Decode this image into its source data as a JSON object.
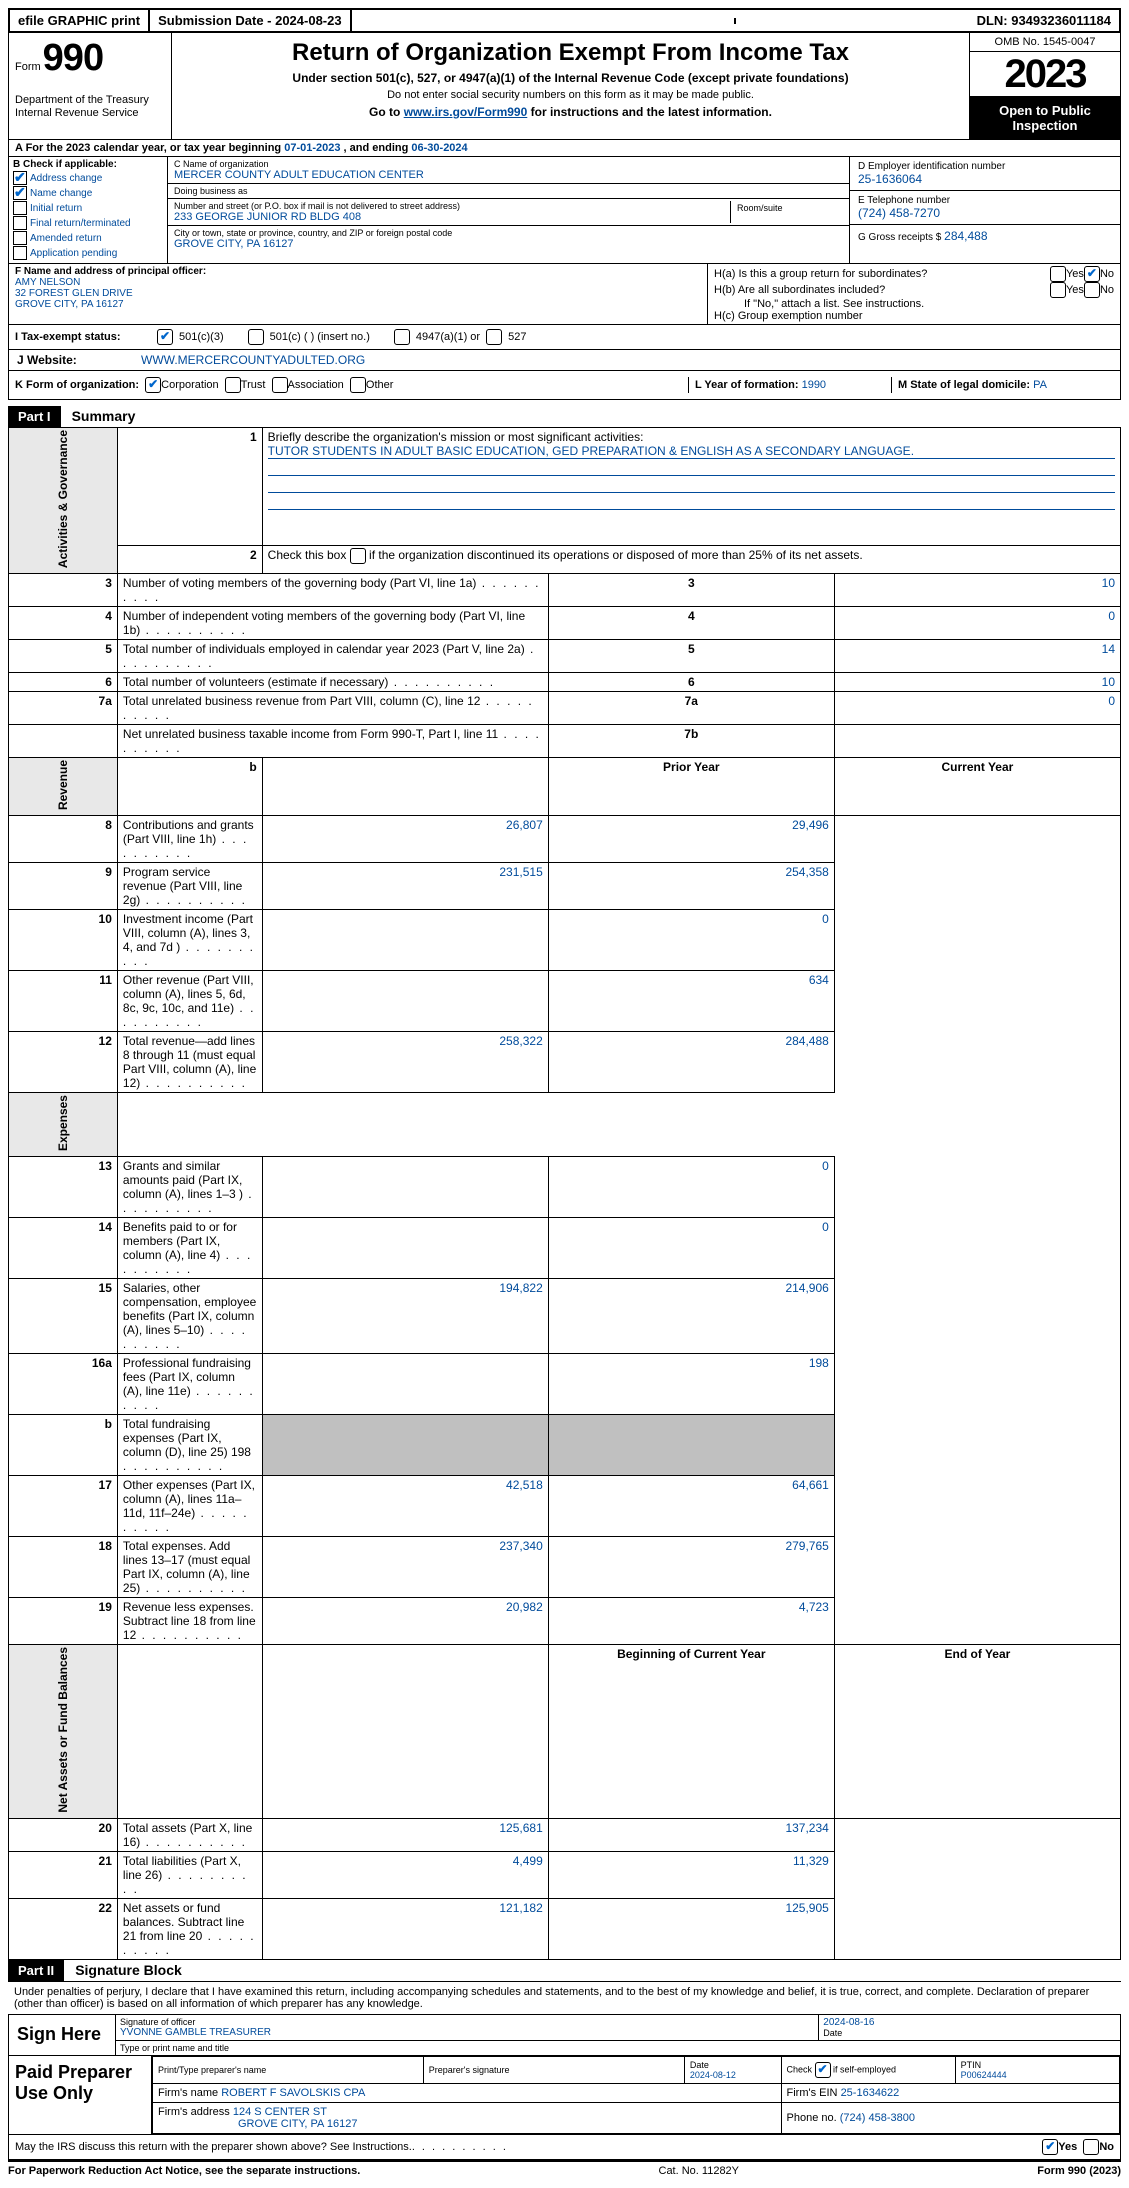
{
  "colors": {
    "link": "#004b9b",
    "black": "#000000",
    "shade": "#c0c0c0"
  },
  "topbar": {
    "efile": "efile GRAPHIC print",
    "submission": "Submission Date - 2024-08-23",
    "dln": "DLN: 93493236011184"
  },
  "header": {
    "form_label": "Form",
    "form_number": "990",
    "dept": "Department of the Treasury\nInternal Revenue Service",
    "title": "Return of Organization Exempt From Income Tax",
    "sub1": "Under section 501(c), 527, or 4947(a)(1) of the Internal Revenue Code (except private foundations)",
    "sub2": "Do not enter social security numbers on this form as it may be made public.",
    "sub3_pre": "Go to ",
    "sub3_link": "www.irs.gov/Form990",
    "sub3_post": " for instructions and the latest information.",
    "omb": "OMB No. 1545-0047",
    "year": "2023",
    "open": "Open to Public Inspection"
  },
  "row_a": {
    "text_pre": "A For the 2023 calendar year, or tax year beginning ",
    "begin": "07-01-2023",
    "mid": " , and ending ",
    "end": "06-30-2024"
  },
  "box_b": {
    "label": "B Check if applicable:",
    "items": [
      {
        "label": "Address change",
        "checked": true
      },
      {
        "label": "Name change",
        "checked": true
      },
      {
        "label": "Initial return",
        "checked": false
      },
      {
        "label": "Final return/terminated",
        "checked": false
      },
      {
        "label": "Amended return",
        "checked": false
      },
      {
        "label": "Application pending",
        "checked": false
      }
    ]
  },
  "box_c": {
    "name_label": "C Name of organization",
    "name": "MERCER COUNTY ADULT EDUCATION CENTER",
    "dba_label": "Doing business as",
    "dba": "",
    "addr_label": "Number and street (or P.O. box if mail is not delivered to street address)",
    "addr": "233 GEORGE JUNIOR RD BLDG 408",
    "room_label": "Room/suite",
    "city_label": "City or town, state or province, country, and ZIP or foreign postal code",
    "city": "GROVE CITY, PA  16127"
  },
  "box_d": {
    "label": "D Employer identification number",
    "val": "25-1636064"
  },
  "box_e": {
    "label": "E Telephone number",
    "val": "(724) 458-7270"
  },
  "box_g": {
    "label": "G Gross receipts $",
    "val": "284,488"
  },
  "box_f": {
    "label": "F  Name and address of principal officer:",
    "name": "AMY NELSON",
    "addr1": "32 FOREST GLEN DRIVE",
    "addr2": "GROVE CITY, PA  16127"
  },
  "box_h": {
    "ha_label": "H(a)  Is this a group return for subordinates?",
    "ha_yes": false,
    "ha_no": true,
    "hb_label": "H(b)  Are all subordinates included?",
    "hb_yes": false,
    "hb_no": false,
    "hb_note": "If \"No,\" attach a list. See instructions.",
    "hc_label": "H(c)  Group exemption number "
  },
  "tax_status": {
    "label_i": "I  Tax-exempt status:",
    "c501c3": true,
    "c501c": false,
    "c501c_text": "501(c) (  ) (insert no.)",
    "c4947": false,
    "c4947_text": "4947(a)(1) or",
    "c527": false,
    "c527_text": "527"
  },
  "website": {
    "label": "J  Website:",
    "val": "WWW.MERCERCOUNTYADULTED.ORG"
  },
  "box_k": {
    "label": "K Form of organization:",
    "corp": true,
    "trust": false,
    "assoc": false,
    "other": false,
    "l_label": "L Year of formation:",
    "l_val": "1990",
    "m_label": "M State of legal domicile:",
    "m_val": "PA"
  },
  "part1": {
    "tag": "Part I",
    "title": "Summary"
  },
  "summary": {
    "line1_label": "Briefly describe the organization's mission or most significant activities:",
    "line1_val": "TUTOR STUDENTS IN ADULT BASIC EDUCATION, GED PREPARATION & ENGLISH AS A SECONDARY LANGUAGE.",
    "line2_label": "Check this box      if the organization discontinued its operations or disposed of more than 25% of its net assets.",
    "gov_rows": [
      {
        "n": "3",
        "label": "Number of voting members of the governing body (Part VI, line 1a)",
        "box": "3",
        "val": "10"
      },
      {
        "n": "4",
        "label": "Number of independent voting members of the governing body (Part VI, line 1b)",
        "box": "4",
        "val": "0"
      },
      {
        "n": "5",
        "label": "Total number of individuals employed in calendar year 2023 (Part V, line 2a)",
        "box": "5",
        "val": "14"
      },
      {
        "n": "6",
        "label": "Total number of volunteers (estimate if necessary)",
        "box": "6",
        "val": "10"
      },
      {
        "n": "7a",
        "label": "Total unrelated business revenue from Part VIII, column (C), line 12",
        "box": "7a",
        "val": "0"
      },
      {
        "n": "",
        "label": "Net unrelated business taxable income from Form 990-T, Part I, line 11",
        "box": "7b",
        "val": ""
      }
    ],
    "rev_header": {
      "prior": "Prior Year",
      "current": "Current Year"
    },
    "rev_rows": [
      {
        "n": "8",
        "label": "Contributions and grants (Part VIII, line 1h)",
        "prior": "26,807",
        "current": "29,496"
      },
      {
        "n": "9",
        "label": "Program service revenue (Part VIII, line 2g)",
        "prior": "231,515",
        "current": "254,358"
      },
      {
        "n": "10",
        "label": "Investment income (Part VIII, column (A), lines 3, 4, and 7d )",
        "prior": "",
        "current": "0"
      },
      {
        "n": "11",
        "label": "Other revenue (Part VIII, column (A), lines 5, 6d, 8c, 9c, 10c, and 11e)",
        "prior": "",
        "current": "634"
      },
      {
        "n": "12",
        "label": "Total revenue—add lines 8 through 11 (must equal Part VIII, column (A), line 12)",
        "prior": "258,322",
        "current": "284,488"
      }
    ],
    "exp_rows": [
      {
        "n": "13",
        "label": "Grants and similar amounts paid (Part IX, column (A), lines 1–3 )",
        "prior": "",
        "current": "0"
      },
      {
        "n": "14",
        "label": "Benefits paid to or for members (Part IX, column (A), line 4)",
        "prior": "",
        "current": "0"
      },
      {
        "n": "15",
        "label": "Salaries, other compensation, employee benefits (Part IX, column (A), lines 5–10)",
        "prior": "194,822",
        "current": "214,906"
      },
      {
        "n": "16a",
        "label": "Professional fundraising fees (Part IX, column (A), line 11e)",
        "prior": "",
        "current": "198"
      },
      {
        "n": "b",
        "label": "Total fundraising expenses (Part IX, column (D), line 25) 198",
        "prior": "SHADE",
        "current": "SHADE"
      },
      {
        "n": "17",
        "label": "Other expenses (Part IX, column (A), lines 11a–11d, 11f–24e)",
        "prior": "42,518",
        "current": "64,661"
      },
      {
        "n": "18",
        "label": "Total expenses. Add lines 13–17 (must equal Part IX, column (A), line 25)",
        "prior": "237,340",
        "current": "279,765"
      },
      {
        "n": "19",
        "label": "Revenue less expenses. Subtract line 18 from line 12",
        "prior": "20,982",
        "current": "4,723"
      }
    ],
    "net_header": {
      "prior": "Beginning of Current Year",
      "current": "End of Year"
    },
    "net_rows": [
      {
        "n": "20",
        "label": "Total assets (Part X, line 16)",
        "prior": "125,681",
        "current": "137,234"
      },
      {
        "n": "21",
        "label": "Total liabilities (Part X, line 26)",
        "prior": "4,499",
        "current": "11,329"
      },
      {
        "n": "22",
        "label": "Net assets or fund balances. Subtract line 21 from line 20",
        "prior": "121,182",
        "current": "125,905"
      }
    ],
    "side_labels": {
      "gov": "Activities & Governance",
      "rev": "Revenue",
      "exp": "Expenses",
      "net": "Net Assets or Fund Balances"
    }
  },
  "part2": {
    "tag": "Part II",
    "title": "Signature Block"
  },
  "sig": {
    "declaration": "Under penalties of perjury, I declare that I have examined this return, including accompanying schedules and statements, and to the best of my knowledge and belief, it is true, correct, and complete. Declaration of preparer (other than officer) is based on all information of which preparer has any knowledge.",
    "sign_here": "Sign Here",
    "sig_officer_label": "Signature of officer",
    "sig_officer": "YVONNE GAMBLE  TREASURER",
    "type_label": "Type or print name and title",
    "date_label": "Date",
    "date": "2024-08-16"
  },
  "preparer": {
    "label": "Paid Preparer Use Only",
    "print_label": "Print/Type preparer's name",
    "sig_label": "Preparer's signature",
    "date_label": "Date",
    "date": "2024-08-12",
    "check_label": "Check         if self-employed",
    "check": true,
    "ptin_label": "PTIN",
    "ptin": "P00624444",
    "firm_name_label": "Firm's name   ",
    "firm_name": "ROBERT F SAVOLSKIS CPA",
    "firm_ein_label": "Firm's EIN  ",
    "firm_ein": "25-1634622",
    "firm_addr_label": "Firm's address ",
    "firm_addr1": "124 S CENTER ST",
    "firm_addr2": "GROVE CITY, PA  16127",
    "phone_label": "Phone no.",
    "phone": "(724) 458-3800"
  },
  "discuss": {
    "text": "May the IRS discuss this return with the preparer shown above? See Instructions.",
    "yes": true,
    "no": false
  },
  "footer": {
    "left": "For Paperwork Reduction Act Notice, see the separate instructions.",
    "mid": "Cat. No. 11282Y",
    "right_pre": "Form ",
    "right_form": "990",
    "right_post": " (2023)"
  }
}
